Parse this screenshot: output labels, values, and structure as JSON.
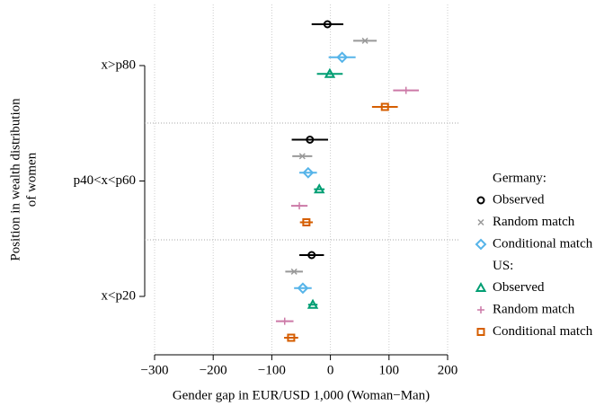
{
  "chart_data": {
    "type": "dot-errorbar",
    "categories": [
      "x>p80",
      "p40<x<p60",
      "x<p20"
    ],
    "x_label": "Gender gap in EUR/USD 1,000 (Woman−Man)",
    "y_label": [
      "Position in wealth distribution",
      "of women"
    ],
    "xlim": [
      -300,
      200
    ],
    "xticks": [
      {
        "value": -300,
        "label": "−300"
      },
      {
        "value": -200,
        "label": "−200"
      },
      {
        "value": -100,
        "label": "−100"
      },
      0,
      100,
      200
    ],
    "grid": true,
    "groups": [
      {
        "name": "Germany:",
        "series": [
          {
            "name": "Observed",
            "marker": "circle",
            "color": "#000000",
            "values": [
              -5,
              -35,
              -32
            ],
            "errors": [
              27,
              31,
              21
            ]
          },
          {
            "name": "Random match",
            "marker": "x",
            "color": "#999999",
            "values": [
              59,
              -48,
              -62
            ],
            "errors": [
              20,
              17,
              15
            ]
          },
          {
            "name": "Conditional match",
            "marker": "diamond",
            "color": "#56b4e9",
            "values": [
              20,
              -38,
              -47
            ],
            "errors": [
              23,
              15,
              15
            ]
          }
        ]
      },
      {
        "name": "US:",
        "series": [
          {
            "name": "Observed",
            "marker": "triangle",
            "color": "#009e73",
            "values": [
              -1,
              -19,
              -30
            ],
            "errors": [
              22,
              9,
              8
            ]
          },
          {
            "name": "Random match",
            "marker": "plus",
            "color": "#cc79a7",
            "values": [
              129,
              -53,
              -78
            ],
            "errors": [
              22,
              14,
              15
            ]
          },
          {
            "name": "Conditional match",
            "marker": "square",
            "color": "#d55e00",
            "values": [
              93,
              -41,
              -67
            ],
            "errors": [
              22,
              11,
              12
            ]
          }
        ]
      }
    ]
  }
}
